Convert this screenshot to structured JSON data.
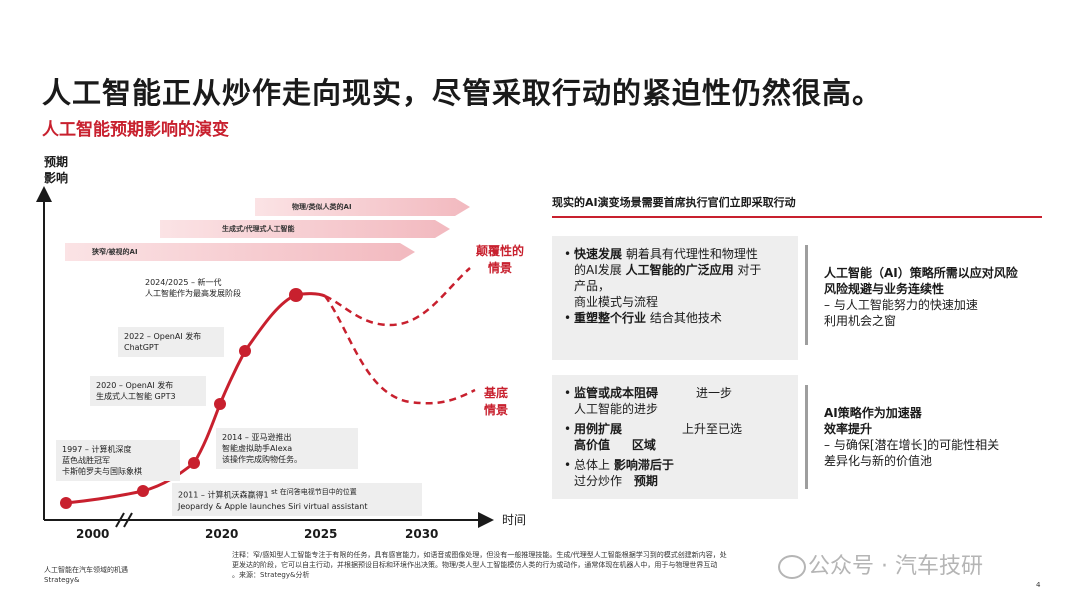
{
  "title": "人工智能正从炒作走向现实，尽管采取行动的紧迫性仍然很高。",
  "subtitle": "人工智能预期影响的演变",
  "chart": {
    "y_label_line1": "预期",
    "y_label_line2": "影响",
    "x_label": "时间",
    "x_ticks": [
      "2000",
      "2020",
      "2025",
      "2030"
    ],
    "bands": [
      "物理/类似人类的AI",
      "生成式/代理式人工智能",
      "狭窄/被视的AI"
    ],
    "annotations": [
      {
        "line1": "1997 – 计算机深度",
        "line2": "蓝色战胜冠军",
        "line3": "卡斯帕罗夫与国际象棋"
      },
      {
        "line1": "2011 – 计算机沃森赢得1",
        "line2": "Jeopardy & Apple launches Siri virtual assistant",
        "extra": "st 在问答电视节目中的位置"
      },
      {
        "line1": "2014 – 亚马逊推出",
        "line2": "智能虚拟助手Alexa",
        "line3": "该操作完成购物任务。"
      },
      {
        "line1": "2020 – OpenAI 发布",
        "line2": "生成式人工智能 GPT3"
      },
      {
        "line1": "2022 – OpenAI 发布",
        "line2": "ChatGPT"
      },
      {
        "line1": "2024/2025 – 新一代",
        "line2": "人工智能作为最高发展阶段"
      }
    ],
    "scenario_top": {
      "line1": "颠覆性的",
      "line2": "情景"
    },
    "scenario_bottom": {
      "line1": "基底",
      "line2": "情景"
    }
  },
  "panel": {
    "heading": "现实的AI演变场景需要首席执行官们立即采取行动",
    "box1": {
      "b1_bold": "快速发展",
      "b1_rest": "朝着具有代理性和物理性",
      "b1_line2a": "的AI发展",
      "b1_line2b": "人工智能的广泛应用",
      "b1_line2c": "对于",
      "b1_line3": "产品，",
      "b1_line4": "商业模式与流程",
      "b2_bold": "重塑整个行业",
      "b2_rest": "结合其他技术"
    },
    "result1": {
      "line1": "人工智能（AI）策略所需以应对风险",
      "line2": "风险规避与业务连续性",
      "line3": "– 与人工智能努力的快速加速",
      "line4": "利用机会之窗"
    },
    "box2": {
      "b1_bold": "监管或成本阻碍",
      "b1_rest": "进一步",
      "b1_line2": "人工智能的进步",
      "b2_bold": "用例扩展",
      "b2_rest": "上升至已选",
      "b2_line2a": "高价值",
      "b2_line2b": "区域",
      "b3_a": "总体上",
      "b3_bold": "影响滞后于",
      "b3_line2a": "过分炒作",
      "b3_line2b": "预期"
    },
    "result2": {
      "line1": "AI策略作为加速器",
      "line2": "效率提升",
      "line3": "– 与确保[潜在增长]的可能性相关",
      "line4": "差异化与新的价值池"
    }
  },
  "footer": {
    "left1": "人工智能在汽车领域的机遇",
    "left2": "Strategy&",
    "note1": "注释：窄/感知型人工智能专注于有限的任务，具有感官能力，如语音或图像处理，但没有一般推理技能。生成/代理型人工智能根据学习到的模式创建新内容，处",
    "note2": "更发达的阶段，它可以自主行动，并根据预设目标和环境作出决策。物理/类人型人工智能模仿人类的行为或动作，通常体现在机器人中，用于与物理世界互动",
    "note3": "。来源：Strategy&分析",
    "watermark": "公众号 · 汽车技研",
    "page": "4"
  },
  "colors": {
    "accent": "#c8202e",
    "band": "#f7d7da",
    "box": "#eeeeee"
  }
}
